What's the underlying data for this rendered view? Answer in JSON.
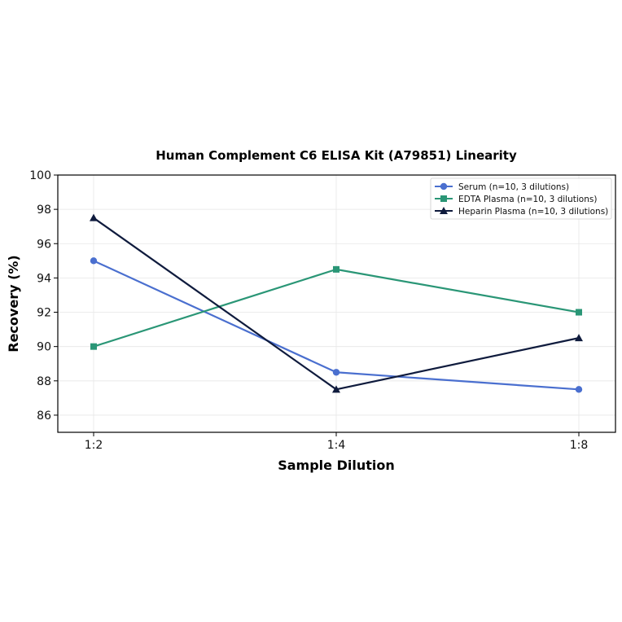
{
  "chart_data": {
    "type": "line",
    "title": "Human Complement C6 ELISA Kit (A79851) Linearity",
    "xlabel": "Sample Dilution",
    "ylabel": "Recovery (%)",
    "categories": [
      "1:2",
      "1:4",
      "1:8"
    ],
    "ylim": [
      85,
      100
    ],
    "yticks": [
      86,
      88,
      90,
      92,
      94,
      96,
      98,
      100
    ],
    "grid": true,
    "legend_position": "top-right",
    "series": [
      {
        "name": "Serum (n=10, 3 dilutions)",
        "values": [
          95.0,
          88.5,
          87.5
        ],
        "color": "#4a6fcf",
        "marker": "circle"
      },
      {
        "name": "EDTA Plasma (n=10, 3 dilutions)",
        "values": [
          90.0,
          94.5,
          92.0
        ],
        "color": "#2a9676",
        "marker": "square"
      },
      {
        "name": "Heparin Plasma (n=10, 3 dilutions)",
        "values": [
          97.5,
          87.5,
          90.5
        ],
        "color": "#0f1b3d",
        "marker": "triangle"
      }
    ]
  }
}
